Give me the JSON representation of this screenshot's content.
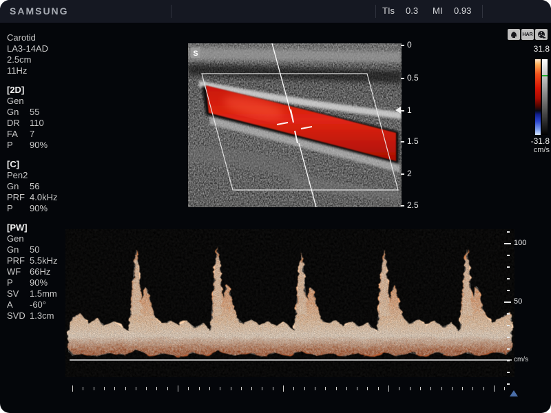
{
  "top_bar": {
    "brand": "SAMSUNG",
    "tis_label": "TIs",
    "tis_value": "0.3",
    "mi_label": "MI",
    "mi_value": "0.93"
  },
  "sidebar": {
    "preset_lines": [
      "Carotid",
      "LA3-14AD",
      "2.5cm",
      "11Hz"
    ],
    "sections": [
      {
        "header": "[2D]",
        "rows": [
          {
            "label": "Gen",
            "value": ""
          },
          {
            "label": "Gn",
            "value": "55"
          },
          {
            "label": "DR",
            "value": "110"
          },
          {
            "label": "FA",
            "value": "7"
          },
          {
            "label": "P",
            "value": "90%"
          }
        ]
      },
      {
        "header": "[C]",
        "rows": [
          {
            "label": "Pen2",
            "value": ""
          },
          {
            "label": "Gn",
            "value": "56"
          },
          {
            "label": "PRF",
            "value": "4.0kHz"
          },
          {
            "label": "P",
            "value": "90%"
          }
        ]
      },
      {
        "header": "[PW]",
        "rows": [
          {
            "label": "Gen",
            "value": ""
          },
          {
            "label": "Gn",
            "value": "50"
          },
          {
            "label": "PRF",
            "value": "5.5kHz"
          },
          {
            "label": "WF",
            "value": "66Hz"
          },
          {
            "label": "P",
            "value": "90%"
          },
          {
            "label": "SV",
            "value": "1.5mm"
          },
          {
            "label": "A",
            "value": "-60°"
          },
          {
            "label": "SVD",
            "value": "1.3cm"
          }
        ]
      }
    ]
  },
  "bmode": {
    "orientation_marker": "S",
    "har_badge_label": "HAR",
    "depth_labels": [
      "0",
      "0.5",
      "1",
      "1.5",
      "2",
      "2.5"
    ]
  },
  "color_bar": {
    "max_label": "31.8",
    "min_label": "-31.8",
    "unit": "cm/s",
    "marker_color": "#1fae2d"
  },
  "spectral": {
    "scale_label_100": "100",
    "scale_label_50": "50",
    "unit": "cm/s"
  }
}
